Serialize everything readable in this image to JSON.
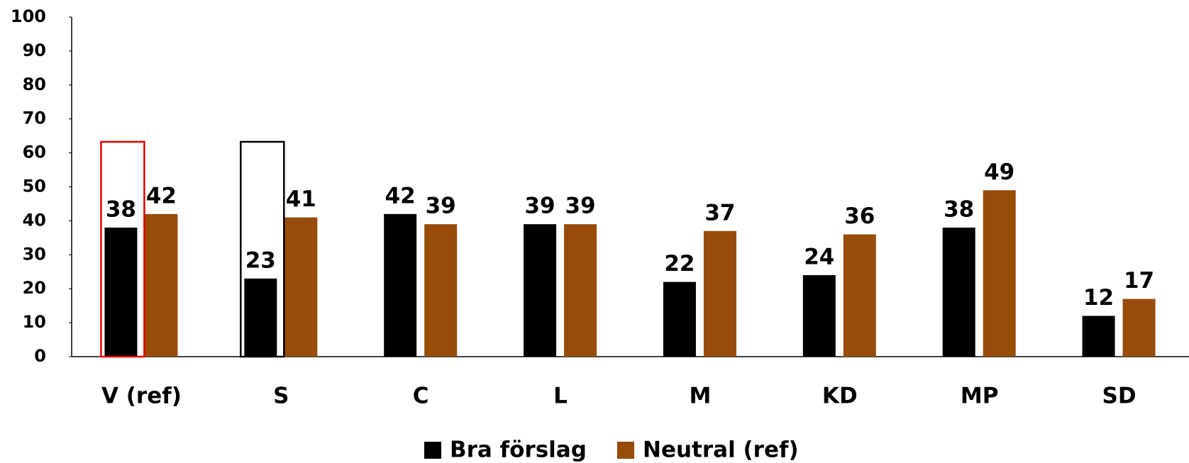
{
  "chart_data": {
    "type": "bar",
    "categories": [
      "V (ref)",
      "S",
      "C",
      "L",
      "M",
      "KD",
      "MP",
      "SD"
    ],
    "series": [
      {
        "name": "Bra förslag",
        "color": "#000000",
        "values": [
          38,
          23,
          42,
          39,
          22,
          24,
          38,
          12
        ]
      },
      {
        "name": "Neutral (ref)",
        "color": "#974c0a",
        "values": [
          42,
          41,
          39,
          39,
          37,
          36,
          49,
          17
        ]
      }
    ],
    "ylim": [
      0,
      100
    ],
    "yticks": [
      0,
      10,
      20,
      30,
      40,
      50,
      60,
      70,
      80,
      90,
      100
    ],
    "legend": "bottom"
  }
}
